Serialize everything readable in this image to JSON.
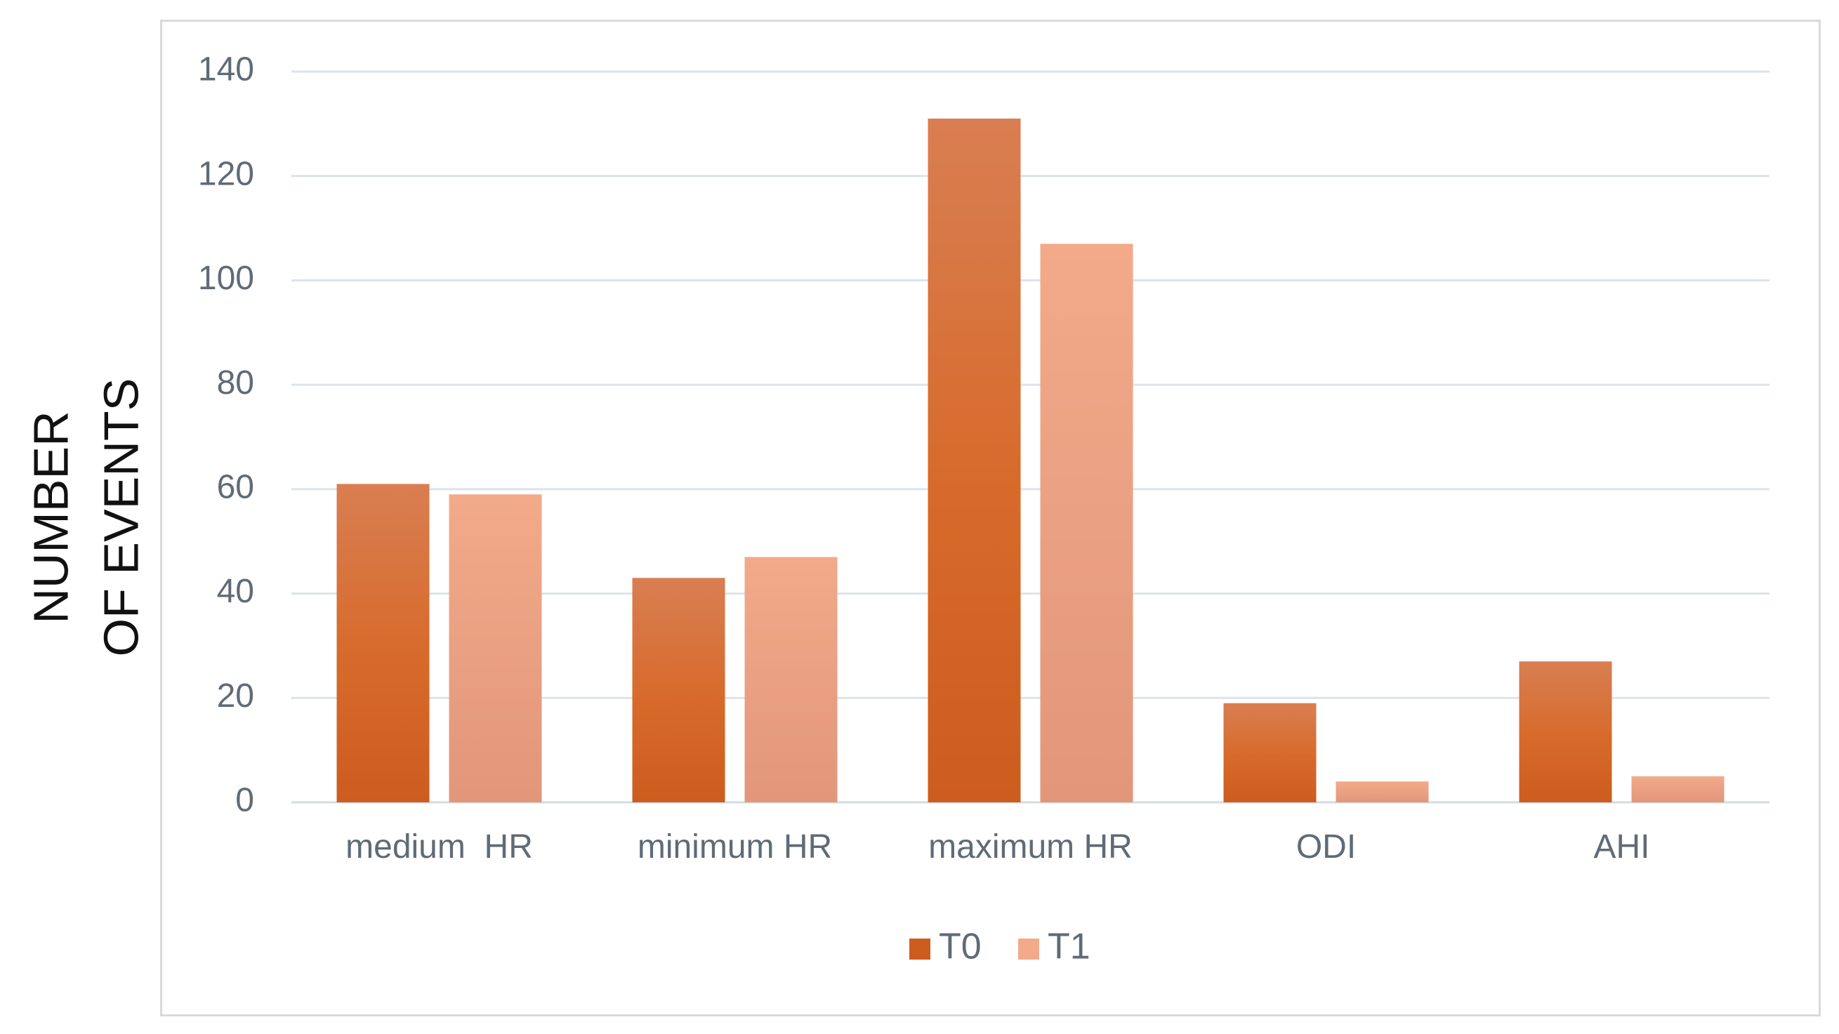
{
  "chart_data": {
    "type": "bar",
    "title": "",
    "xlabel": "",
    "ylabel_lines": [
      "NUMBER",
      "OF EVENTS"
    ],
    "categories": [
      "medium  HR",
      "minimum HR",
      "maximum HR",
      "ODI",
      "AHI"
    ],
    "series": [
      {
        "name": "T0",
        "values": [
          61,
          43,
          131,
          19,
          27
        ]
      },
      {
        "name": "T1",
        "values": [
          59,
          47,
          107,
          4,
          5
        ]
      }
    ],
    "ylim": [
      0,
      140
    ],
    "yticks": [
      0,
      20,
      40,
      60,
      80,
      100,
      120,
      140
    ],
    "grid": true,
    "legend_position": "bottom",
    "colors": {
      "T0_top": "#d97e52",
      "T0_bottom": "#cd5c1f",
      "T1_top": "#f2aa8a",
      "T1_bottom": "#e2967a",
      "grid": "#dde3ea",
      "text": "#5f6b76"
    }
  }
}
